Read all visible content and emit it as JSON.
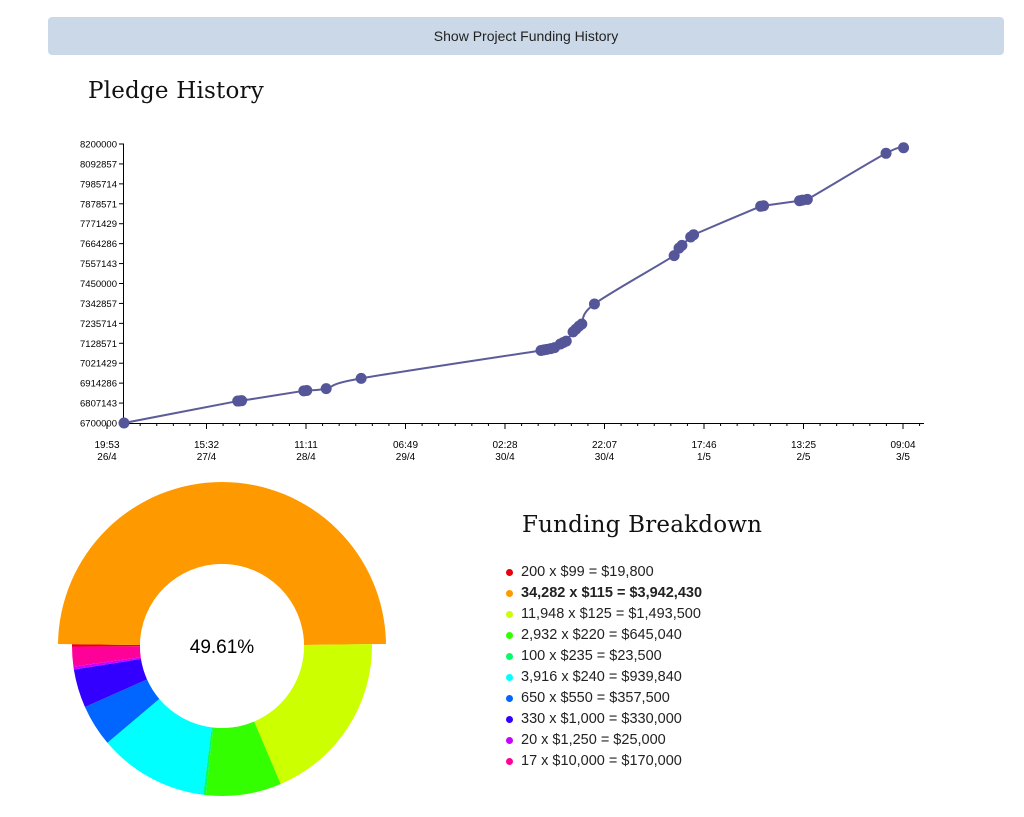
{
  "toggle_button": {
    "label": "Show Project Funding History"
  },
  "pledge_history": {
    "title": "Pledge History",
    "chart_data": {
      "type": "line",
      "title": "Pledge History",
      "xlabel": "",
      "ylabel": "",
      "ylim": [
        6700000,
        8200000
      ],
      "y_ticks": [
        "6700000",
        "6807143",
        "6914286",
        "7021429",
        "7128571",
        "7235714",
        "7342857",
        "7450000",
        "7557143",
        "7664286",
        "7771429",
        "7878571",
        "7985714",
        "8092857",
        "8200000"
      ],
      "x_ticks": [
        {
          "time": "19:53",
          "date": "26/4"
        },
        {
          "time": "15:32",
          "date": "27/4"
        },
        {
          "time": "11:11",
          "date": "28/4"
        },
        {
          "time": "06:49",
          "date": "29/4"
        },
        {
          "time": "02:28",
          "date": "30/4"
        },
        {
          "time": "22:07",
          "date": "30/4"
        },
        {
          "time": "17:46",
          "date": "1/5"
        },
        {
          "time": "13:25",
          "date": "2/5"
        },
        {
          "time": "09:04",
          "date": "3/5"
        }
      ],
      "series": [
        {
          "points": [
            [
              0.0,
              6700000
            ],
            [
              1.17,
              6818000
            ],
            [
              1.19,
              6819000
            ],
            [
              1.21,
              6820000
            ],
            [
              1.85,
              6873000
            ],
            [
              1.88,
              6875000
            ],
            [
              2.08,
              6885000
            ],
            [
              2.44,
              6940000
            ],
            [
              4.29,
              7090000
            ],
            [
              4.32,
              7093000
            ],
            [
              4.35,
              7096000
            ],
            [
              4.39,
              7100000
            ],
            [
              4.43,
              7105000
            ],
            [
              4.49,
              7125000
            ],
            [
              4.52,
              7133000
            ],
            [
              4.55,
              7140000
            ],
            [
              4.62,
              7190000
            ],
            [
              4.65,
              7205000
            ],
            [
              4.68,
              7220000
            ],
            [
              4.71,
              7232000
            ],
            [
              4.84,
              7340000
            ],
            [
              5.66,
              7600000
            ],
            [
              5.71,
              7640000
            ],
            [
              5.74,
              7655000
            ],
            [
              5.83,
              7700000
            ],
            [
              5.86,
              7712000
            ],
            [
              6.55,
              7865000
            ],
            [
              6.58,
              7868000
            ],
            [
              6.95,
              7895000
            ],
            [
              6.98,
              7898000
            ],
            [
              7.03,
              7902000
            ],
            [
              7.84,
              8150000
            ],
            [
              8.02,
              8180000
            ]
          ]
        }
      ]
    }
  },
  "funding_breakdown": {
    "title": "Funding Breakdown",
    "center_label": "49.61%",
    "highlight_index": 1,
    "items": [
      {
        "label": "200 x $99 = $19,800",
        "amount": 19800,
        "color": "#e8000b"
      },
      {
        "label": "34,282 x $115 = $3,942,430",
        "amount": 3942430,
        "color": "#ff9900"
      },
      {
        "label": "11,948 x $125 = $1,493,500",
        "amount": 1493500,
        "color": "#ccff00"
      },
      {
        "label": "2,932 x $220 = $645,040",
        "amount": 645040,
        "color": "#33ff00"
      },
      {
        "label": "100 x $235 = $23,500",
        "amount": 23500,
        "color": "#00ff66"
      },
      {
        "label": "3,916 x $240 = $939,840",
        "amount": 939840,
        "color": "#00ffff"
      },
      {
        "label": "650 x $550 = $357,500",
        "amount": 357500,
        "color": "#0066ff"
      },
      {
        "label": "330 x $1,000 = $330,000",
        "amount": 330000,
        "color": "#3300ff"
      },
      {
        "label": "20 x $1,250 = $25,000",
        "amount": 25000,
        "color": "#cc00ff"
      },
      {
        "label": "17 x $10,000 = $170,000",
        "amount": 170000,
        "color": "#ff0099"
      }
    ]
  },
  "colors": {
    "line": "#5c5c99",
    "point": "#555599"
  }
}
